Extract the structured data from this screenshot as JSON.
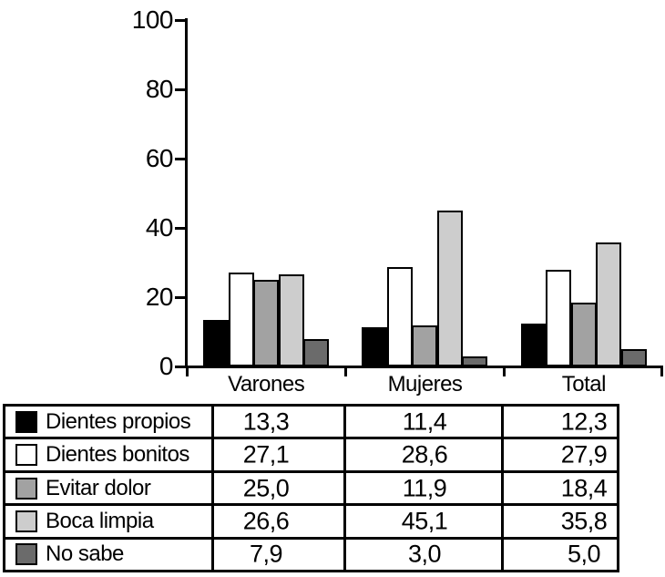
{
  "chart_data": {
    "type": "bar",
    "title": "",
    "xlabel": "",
    "ylabel": "",
    "categories": [
      "Varones",
      "Mujeres",
      "Total"
    ],
    "series": [
      {
        "name": "Dientes propios",
        "color": "#000000",
        "values": [
          13.3,
          11.4,
          12.3
        ]
      },
      {
        "name": "Dientes bonitos",
        "color": "#ffffff",
        "values": [
          27.1,
          28.6,
          27.9
        ]
      },
      {
        "name": "Evitar dolor",
        "color": "#a2a2a2",
        "values": [
          25.0,
          11.9,
          18.4
        ]
      },
      {
        "name": "Boca limpia",
        "color": "#cdcdcd",
        "values": [
          26.6,
          45.1,
          35.8
        ]
      },
      {
        "name": "No sabe",
        "color": "#6b6b6b",
        "values": [
          7.9,
          3.0,
          5.0
        ]
      }
    ],
    "ylim": [
      0,
      100
    ],
    "yticks": [
      0,
      20,
      40,
      60,
      80,
      100
    ],
    "grid": false,
    "legend_position": "table-below",
    "bar_border_color": "#000000",
    "axis_color": "#000000"
  },
  "table": {
    "columns": [
      "Varones",
      "Mujeres",
      "Total"
    ],
    "rows": [
      {
        "label": "Dientes propios",
        "swatch": "#000000",
        "values": [
          "13,3",
          "11,4",
          "12,3"
        ]
      },
      {
        "label": "Dientes bonitos",
        "swatch": "#ffffff",
        "values": [
          "27,1",
          "28,6",
          "27,9"
        ]
      },
      {
        "label": "Evitar dolor",
        "swatch": "#a2a2a2",
        "values": [
          "25,0",
          "11,9",
          "18,4"
        ]
      },
      {
        "label": "Boca limpia",
        "swatch": "#cdcdcd",
        "values": [
          "26,6",
          "45,1",
          "35,8"
        ]
      },
      {
        "label": "No sabe",
        "swatch": "#6b6b6b",
        "values": [
          "7,9",
          "3,0",
          "5,0"
        ]
      }
    ]
  }
}
